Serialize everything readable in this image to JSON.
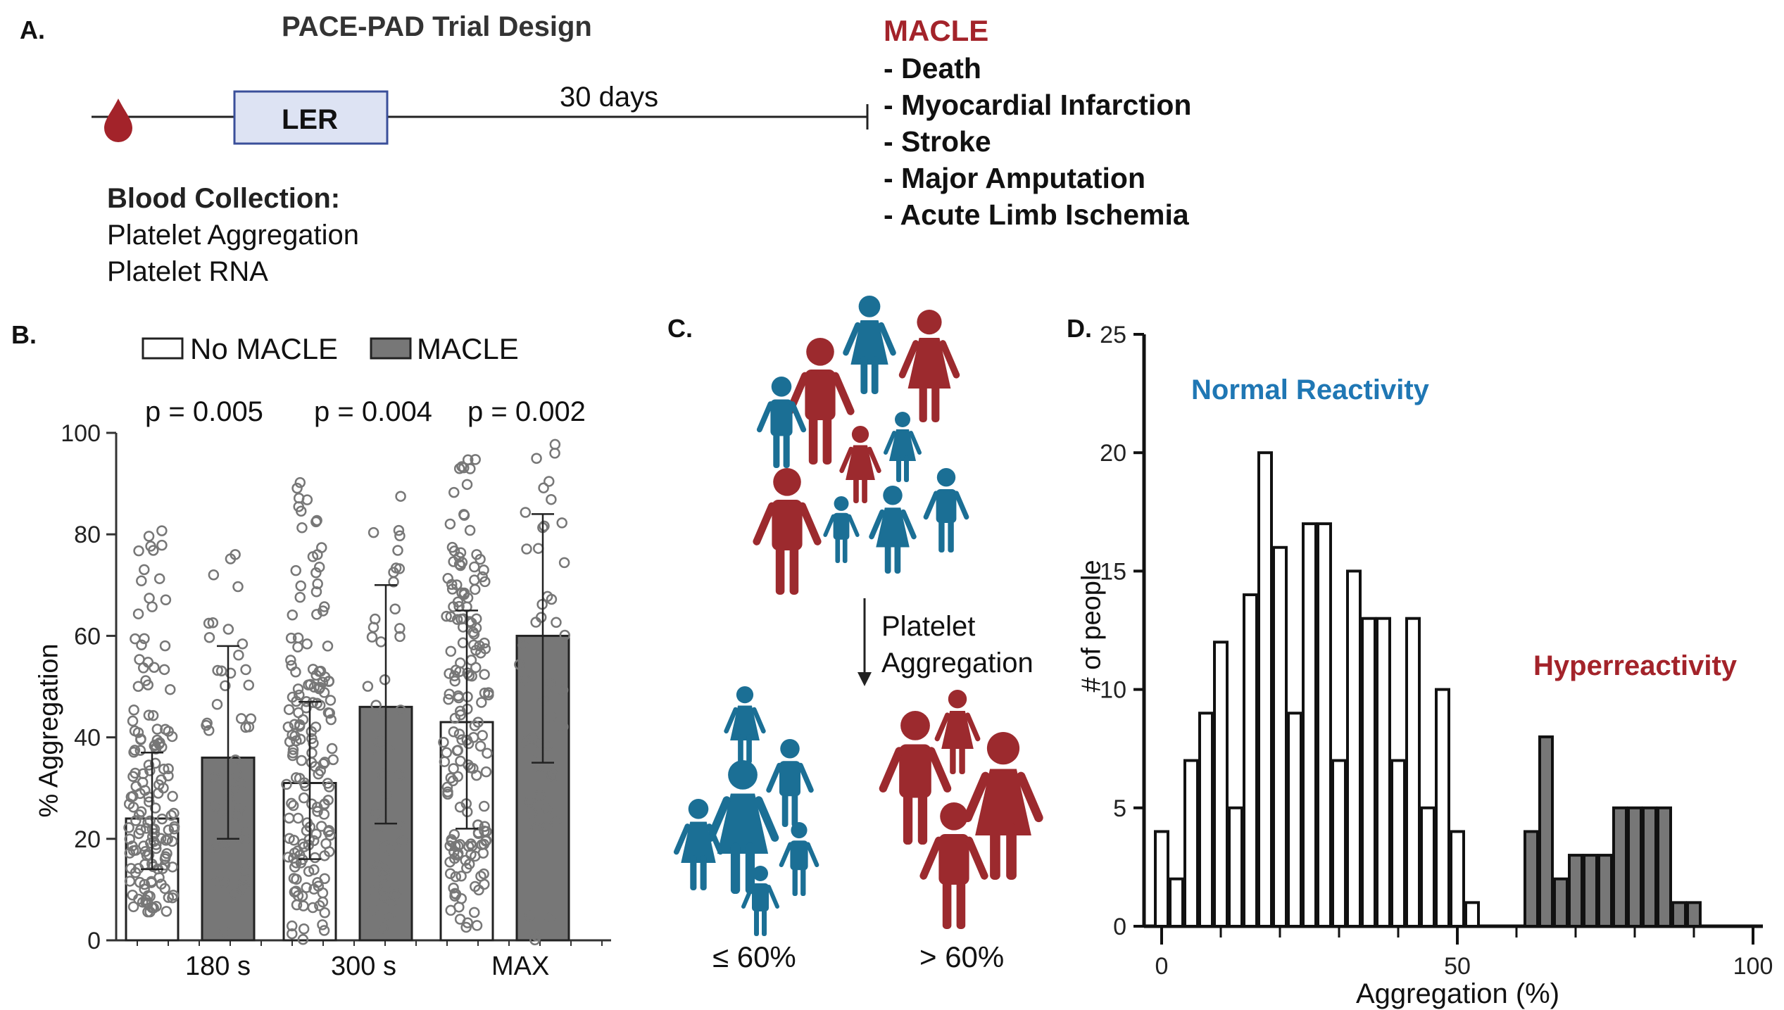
{
  "panel_a": {
    "label": "A.",
    "title": "PACE-PAD Trial Design",
    "ler_label": "LER",
    "days_label": "30 days",
    "blood_title": "Blood Collection:",
    "blood_items": [
      "Platelet Aggregation",
      "Platelet RNA"
    ],
    "macle_title": "MACLE",
    "macle_items": [
      "- Death",
      "- Myocardial Infarction",
      "- Stroke",
      "- Major Amputation",
      "- Acute Limb Ischemia"
    ]
  },
  "panel_b": {
    "label": "B.",
    "legend": [
      "No MACLE",
      "MACLE"
    ],
    "pvalues": [
      "p = 0.005",
      "p = 0.004",
      "p = 0.002"
    ],
    "ylabel": "% Aggregation",
    "yticks": [
      "0",
      "20",
      "40",
      "60",
      "80",
      "100"
    ],
    "xticks": [
      "180 s",
      "300 s",
      "MAX"
    ]
  },
  "panel_c": {
    "label": "C.",
    "arrow_label": [
      "Platelet",
      "Aggregation"
    ],
    "low_label": "≤ 60%",
    "high_label": "> 60%"
  },
  "panel_d": {
    "label": "D.",
    "normal_label": "Normal Reactivity",
    "hyper_label": "Hyperreactivity",
    "ylabel": "# of people",
    "xlabel": "Aggregation (%)",
    "yticks": [
      "0",
      "5",
      "10",
      "15",
      "20",
      "25"
    ],
    "xticks": [
      "0",
      "50",
      "100"
    ]
  },
  "colors": {
    "macle_red": "#a3232a",
    "normal_blue": "#1f77b4",
    "bar_gray": "#777777",
    "people_red": "#9c2a2e",
    "people_blue": "#1b6f95"
  },
  "chart_data": [
    {
      "type": "bar",
      "categories": [
        "180 s",
        "300 s",
        "MAX"
      ],
      "ylabel": "% Aggregation",
      "ylim": [
        0,
        100
      ],
      "series": [
        {
          "name": "No MACLE",
          "values": [
            24,
            31,
            43
          ],
          "sd_upper": [
            37,
            47,
            65
          ],
          "sd_lower": [
            14,
            16,
            22
          ]
        },
        {
          "name": "MACLE",
          "values": [
            36,
            46,
            60
          ],
          "sd_upper": [
            58,
            70,
            84
          ],
          "sd_lower": [
            20,
            23,
            35
          ]
        }
      ]
    },
    {
      "type": "bar",
      "xlabel": "Aggregation (%)",
      "ylabel": "# of people",
      "xlim": [
        0,
        100
      ],
      "ylim": [
        0,
        25
      ],
      "bin_width": 2.5,
      "series": [
        {
          "name": "Normal Reactivity",
          "x": [
            0,
            2.5,
            5,
            7.5,
            10,
            12.5,
            15,
            17.5,
            20,
            22.5,
            25,
            27.5,
            30,
            32.5,
            35,
            37.5,
            40,
            42.5,
            45,
            47.5,
            50,
            52.5,
            55,
            57.5
          ],
          "values": [
            4,
            2,
            7,
            9,
            12,
            5,
            14,
            20,
            16,
            9,
            17,
            17,
            7,
            15,
            13,
            13,
            7,
            13,
            5,
            10,
            4,
            1,
            0,
            0
          ]
        },
        {
          "name": "Hyperreactivity",
          "x": [
            62.5,
            65,
            67.5,
            70,
            72.5,
            75,
            77.5,
            80,
            82.5,
            85,
            87.5,
            90,
            92.5,
            95
          ],
          "values": [
            4,
            8,
            2,
            3,
            3,
            3,
            5,
            5,
            5,
            5,
            1,
            1,
            0,
            0
          ]
        }
      ]
    }
  ]
}
